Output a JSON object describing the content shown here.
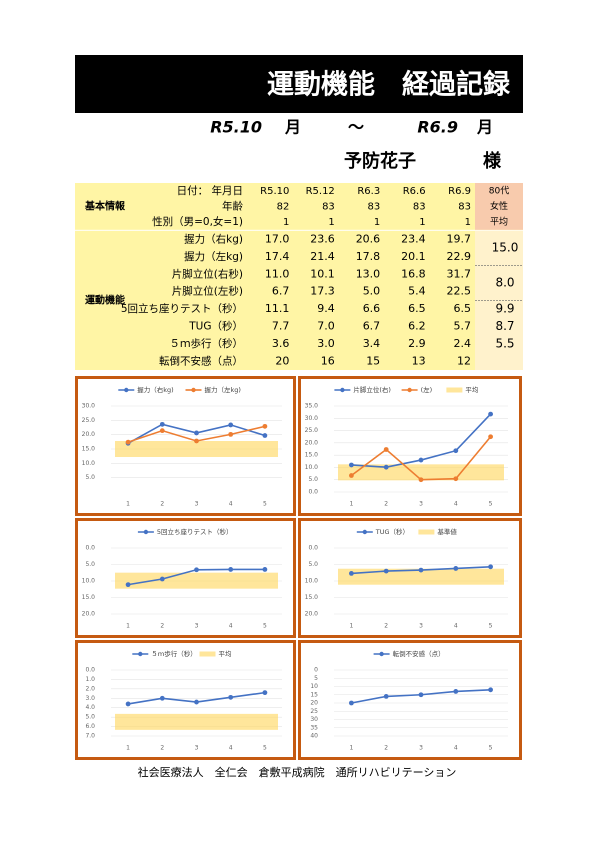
{
  "header": {
    "title": "運動機能　経過記録",
    "period": {
      "from": "R5.10",
      "from_unit": "月",
      "separator": "～",
      "to": "R6.9",
      "to_unit": "月"
    },
    "name": "予防花子",
    "honorific": "様"
  },
  "table": {
    "sections": [
      {
        "label": "基本情報",
        "rows": [
          {
            "label": "日付：  年月日",
            "cells": [
              "R5.10",
              "R5.12",
              "R6.3",
              "R6.6",
              "R6.9"
            ],
            "extra": "80代"
          },
          {
            "label": "年齢",
            "cells": [
              "82",
              "83",
              "83",
              "83",
              "83"
            ],
            "extra": "女性"
          },
          {
            "label": "性別（男=0,女=1)",
            "cells": [
              "1",
              "1",
              "1",
              "1",
              "1"
            ],
            "extra": "平均"
          }
        ]
      },
      {
        "label": "運動機能",
        "rows": [
          {
            "label": "握力（右kg)",
            "cells": [
              "17.0",
              "23.6",
              "20.6",
              "23.4",
              "19.7"
            ],
            "average": "15.0"
          },
          {
            "label": "握力（左kg)",
            "cells": [
              "17.4",
              "21.4",
              "17.8",
              "20.1",
              "22.9"
            ]
          },
          {
            "label": "片脚立位(右秒)",
            "cells": [
              "11.0",
              "10.1",
              "13.0",
              "16.8",
              "31.7"
            ],
            "average": "8.0"
          },
          {
            "label": "片脚立位(左秒)",
            "cells": [
              "6.7",
              "17.3",
              "5.0",
              "5.4",
              "22.5"
            ]
          },
          {
            "label": "5回立ち座りテスト（秒）",
            "cells": [
              "11.1",
              "9.4",
              "6.6",
              "6.5",
              "6.5"
            ],
            "average": "9.9"
          },
          {
            "label": "TUG（秒）",
            "cells": [
              "7.7",
              "7.0",
              "6.7",
              "6.2",
              "5.7"
            ],
            "average": "8.7"
          },
          {
            "label": "５ｍ歩行（秒）",
            "cells": [
              "3.6",
              "3.0",
              "3.4",
              "2.9",
              "2.4"
            ],
            "average": "5.5"
          },
          {
            "label": "転倒不安感（点）",
            "cells": [
              "20",
              "16",
              "15",
              "13",
              "12"
            ]
          }
        ]
      }
    ]
  },
  "chart_data": [
    {
      "type": "line",
      "categories": [
        "1",
        "2",
        "3",
        "4",
        "5"
      ],
      "series": [
        {
          "name": "握力（右kg)",
          "color": "#4472c4",
          "values": [
            17.0,
            23.6,
            20.6,
            23.4,
            19.7
          ]
        },
        {
          "name": "握力（左kg)",
          "color": "#ed7d31",
          "values": [
            17.4,
            21.4,
            17.8,
            20.1,
            22.9
          ]
        }
      ],
      "band": {
        "value": 15.0,
        "color": "#ffd966"
      },
      "ylim": [
        0,
        30
      ],
      "grid": true,
      "yticks": [
        {
          "value": 5,
          "label": "5.0"
        },
        {
          "value": 10,
          "label": "10.0"
        },
        {
          "value": 15,
          "label": "15.0"
        },
        {
          "value": 20,
          "label": "20.0"
        },
        {
          "value": 25,
          "label": "25.0"
        },
        {
          "value": 30,
          "label": "30.0"
        }
      ]
    },
    {
      "type": "line",
      "categories": [
        "1",
        "2",
        "3",
        "4",
        "5"
      ],
      "series": [
        {
          "name": "片脚立位(右)",
          "color": "#4472c4",
          "values": [
            11.0,
            10.1,
            13.0,
            16.8,
            31.7
          ]
        },
        {
          "name": "(左)",
          "color": "#ed7d31",
          "values": [
            6.7,
            17.3,
            5.0,
            5.4,
            22.5
          ]
        }
      ],
      "band": {
        "name": "平均",
        "value": 8.0,
        "color": "#ffd966"
      },
      "ylim": [
        0,
        35
      ],
      "grid": true,
      "yticks": [
        {
          "value": 0,
          "label": "0.0"
        },
        {
          "value": 5,
          "label": "5.0"
        },
        {
          "value": 10,
          "label": "10.0"
        },
        {
          "value": 15,
          "label": "15.0"
        },
        {
          "value": 20,
          "label": "20.0"
        },
        {
          "value": 25,
          "label": "25.0"
        },
        {
          "value": 30,
          "label": "30.0"
        },
        {
          "value": 35,
          "label": "35.0"
        }
      ]
    },
    {
      "type": "line",
      "categories": [
        "1",
        "2",
        "3",
        "4",
        "5"
      ],
      "series": [
        {
          "name": "5回立ち座りテスト（秒）",
          "color": "#4472c4",
          "values": [
            11.1,
            9.4,
            6.6,
            6.5,
            6.5
          ]
        }
      ],
      "band": {
        "value": 9.9,
        "color": "#ffd966"
      },
      "ylim": [
        20,
        0
      ],
      "grid": true,
      "yticks": [
        {
          "value": 0,
          "label": "0.0"
        },
        {
          "value": 5,
          "label": "5.0"
        },
        {
          "value": 10,
          "label": "10.0"
        },
        {
          "value": 15,
          "label": "15.0"
        },
        {
          "value": 20,
          "label": "20.0"
        }
      ]
    },
    {
      "type": "line",
      "categories": [
        "1",
        "2",
        "3",
        "4",
        "5"
      ],
      "series": [
        {
          "name": "TUG（秒）",
          "color": "#4472c4",
          "values": [
            7.7,
            7.0,
            6.7,
            6.2,
            5.7
          ]
        }
      ],
      "band": {
        "name": "基準値",
        "value": 8.7,
        "color": "#ffd966"
      },
      "ylim": [
        20,
        0
      ],
      "grid": true,
      "yticks": [
        {
          "value": 0,
          "label": "0.0"
        },
        {
          "value": 5,
          "label": "5.0"
        },
        {
          "value": 10,
          "label": "10.0"
        },
        {
          "value": 15,
          "label": "15.0"
        },
        {
          "value": 20,
          "label": "20.0"
        }
      ]
    },
    {
      "type": "line",
      "categories": [
        "1",
        "2",
        "3",
        "4",
        "5"
      ],
      "series": [
        {
          "name": "５ｍ歩行（秒）",
          "color": "#4472c4",
          "values": [
            3.6,
            3.0,
            3.4,
            2.9,
            2.4
          ]
        }
      ],
      "band": {
        "name": "平均",
        "value": 5.5,
        "color": "#ffd966"
      },
      "ylim": [
        7,
        0
      ],
      "grid": true,
      "yticks": [
        {
          "value": 0,
          "label": "0.0"
        },
        {
          "value": 1,
          "label": "1.0"
        },
        {
          "value": 2,
          "label": "2.0"
        },
        {
          "value": 3,
          "label": "3.0"
        },
        {
          "value": 4,
          "label": "4.0"
        },
        {
          "value": 5,
          "label": "5.0"
        },
        {
          "value": 6,
          "label": "6.0"
        },
        {
          "value": 7,
          "label": "7.0"
        }
      ]
    },
    {
      "type": "line",
      "categories": [
        "1",
        "2",
        "3",
        "4",
        "5"
      ],
      "series": [
        {
          "name": "転倒不安感（点）",
          "color": "#4472c4",
          "values": [
            20,
            16,
            15,
            13,
            12
          ]
        }
      ],
      "ylim": [
        40,
        0
      ],
      "grid": true,
      "yticks": [
        0,
        5,
        10,
        15,
        20,
        25,
        30,
        35,
        40
      ]
    }
  ],
  "footer": "社会医療法人　全仁会　倉敷平成病院　通所リハビリテーション"
}
